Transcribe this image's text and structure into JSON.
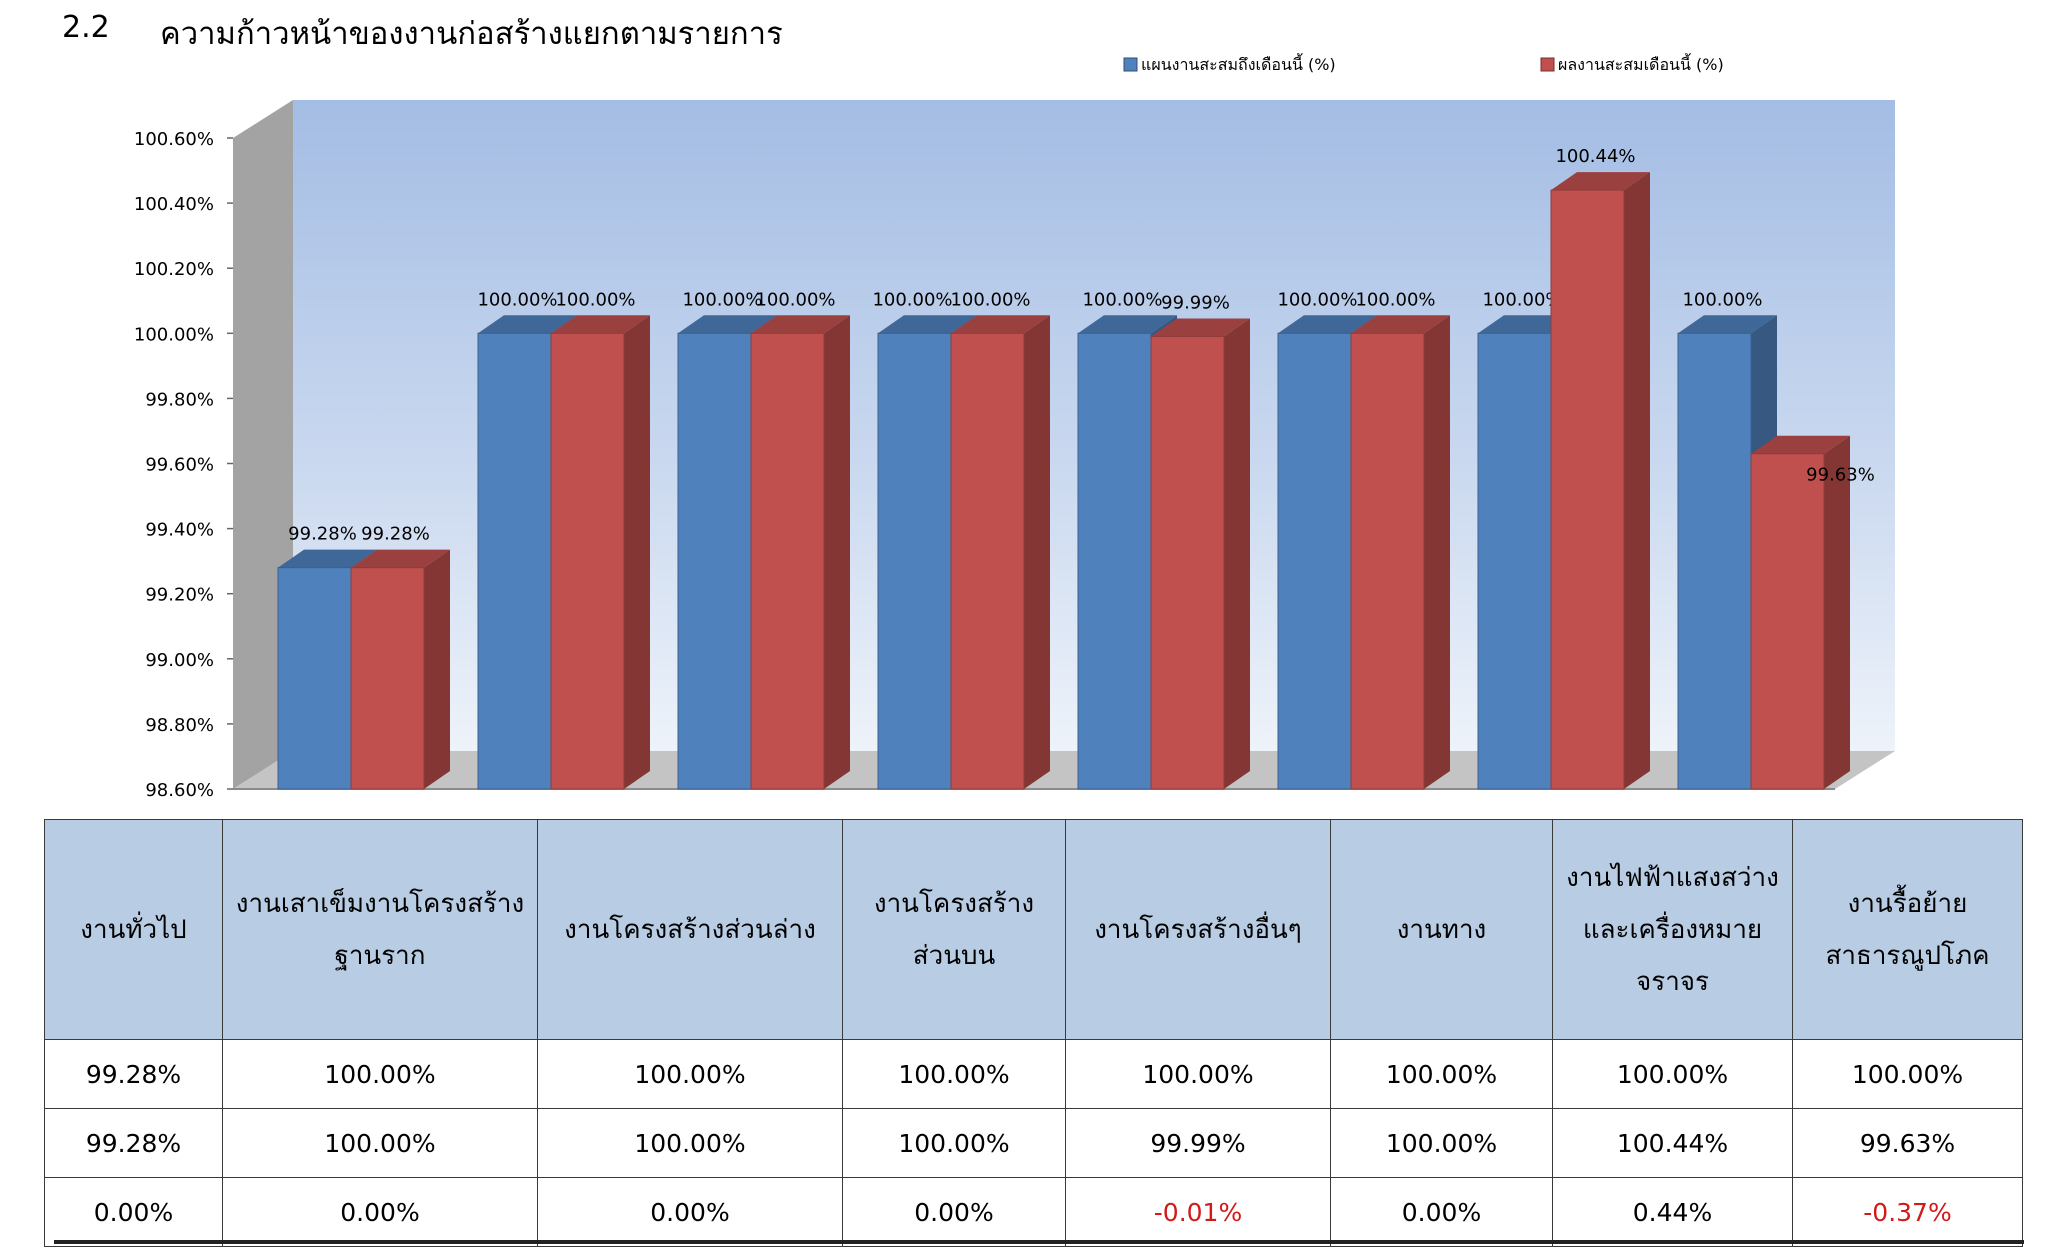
{
  "section": {
    "number": "2.2",
    "title": "ความก้าวหน้าของงานก่อสร้างแยกตามรายการ"
  },
  "chart_data": {
    "type": "bar",
    "title": "",
    "xlabel": "",
    "ylabel": "",
    "ylim": [
      98.6,
      100.6
    ],
    "ytick_step": 0.2,
    "yticks": [
      "98.60%",
      "98.80%",
      "99.00%",
      "99.20%",
      "99.40%",
      "99.60%",
      "99.80%",
      "100.00%",
      "100.20%",
      "100.40%",
      "100.60%"
    ],
    "grid": false,
    "legend_position": "top",
    "categories": [
      "งานทั่วไป",
      "งานเสาเข็มงานโครงสร้างฐานราก",
      "งานโครงสร้างส่วนล่าง",
      "งานโครงสร้างส่วนบน",
      "งานโครงสร้างอื่นๆ",
      "งานทาง",
      "งานไฟฟ้าแสงสว่างและเครื่องหมายจราจร",
      "งานรื้อย้ายสาธารณูปโภค"
    ],
    "series": [
      {
        "name": "แผนงานสะสมถึงเดือนนี้ (%)",
        "color": "#4f81bd",
        "values": [
          99.28,
          100.0,
          100.0,
          100.0,
          100.0,
          100.0,
          100.0,
          100.0
        ],
        "labels": [
          "99.28%",
          "100.00%",
          "100.00%",
          "100.00%",
          "100.00%",
          "100.00%",
          "100.00%",
          "100.00%"
        ]
      },
      {
        "name": "ผลงานสะสมเดือนนี้ (%)",
        "color": "#c0504d",
        "values": [
          99.28,
          100.0,
          100.0,
          100.0,
          99.99,
          100.0,
          100.44,
          99.63
        ],
        "labels": [
          "99.28%",
          "100.00%",
          "100.00%",
          "100.00%",
          "99.99%",
          "100.00%",
          "100.44%",
          "99.63%"
        ]
      }
    ]
  },
  "table": {
    "headers": [
      [
        "งานทั่วไป"
      ],
      [
        "งานเสาเข็มงานโครงสร้าง",
        "ฐานราก"
      ],
      [
        "งานโครงสร้างส่วนล่าง"
      ],
      [
        "งานโครงสร้าง",
        "ส่วนบน"
      ],
      [
        "งานโครงสร้างอื่นๆ"
      ],
      [
        "งานทาง"
      ],
      [
        "งานไฟฟ้าแสงสว่าง",
        "และเครื่องหมาย",
        "จราจร"
      ],
      [
        "งานรื้อย้าย",
        "สาธารณูปโภค"
      ]
    ],
    "rows": [
      [
        "99.28%",
        "100.00%",
        "100.00%",
        "100.00%",
        "100.00%",
        "100.00%",
        "100.00%",
        "100.00%"
      ],
      [
        "99.28%",
        "100.00%",
        "100.00%",
        "100.00%",
        "99.99%",
        "100.00%",
        "100.44%",
        "99.63%"
      ],
      [
        "0.00%",
        "0.00%",
        "0.00%",
        "0.00%",
        "-0.01%",
        "0.00%",
        "0.44%",
        "-0.37%"
      ]
    ],
    "negative_color": "#d11a1a"
  }
}
